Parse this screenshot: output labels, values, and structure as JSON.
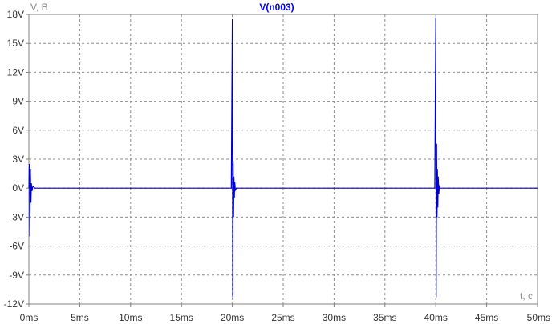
{
  "chart_data": {
    "type": "line",
    "title": "V(n003)",
    "xlabel": "t, c",
    "ylabel": "V, B",
    "xlim": [
      0,
      50
    ],
    "ylim": [
      -12,
      18
    ],
    "grid": true,
    "x_ticks": [
      0,
      5,
      10,
      15,
      20,
      25,
      30,
      35,
      40,
      45,
      50
    ],
    "x_tick_labels": [
      "0ms",
      "5ms",
      "10ms",
      "15ms",
      "20ms",
      "25ms",
      "30ms",
      "35ms",
      "40ms",
      "45ms",
      "50ms"
    ],
    "y_ticks": [
      18,
      15,
      12,
      9,
      6,
      3,
      0,
      -3,
      -6,
      -9,
      -12
    ],
    "y_tick_labels": [
      "18V",
      "15V",
      "12V",
      "9V",
      "6V",
      "3V",
      "0V",
      "-3V",
      "-6V",
      "-9V",
      "-12V"
    ],
    "series": [
      {
        "name": "V(n003)",
        "color": "#0000cc",
        "x": [
          0,
          0.05,
          0.1,
          0.15,
          0.2,
          0.25,
          0.3,
          0.4,
          0.6,
          19.9,
          20.0,
          20.04,
          20.08,
          20.12,
          20.16,
          20.2,
          20.24,
          20.3,
          20.4,
          39.9,
          40.0,
          40.04,
          40.08,
          40.12,
          40.16,
          40.2,
          40.24,
          40.3,
          40.35,
          40.4,
          40.5,
          50
        ],
        "y": [
          0,
          2.5,
          -5.0,
          2.0,
          -1.5,
          0.5,
          -0.3,
          0.2,
          0,
          0,
          17.5,
          -11.3,
          2.8,
          -3.0,
          1.2,
          -1.0,
          0.6,
          -0.2,
          0,
          0,
          17.7,
          -11.3,
          4.6,
          -3.0,
          2.0,
          -2.0,
          1.2,
          -0.6,
          0.3,
          0,
          0,
          0
        ]
      }
    ]
  }
}
